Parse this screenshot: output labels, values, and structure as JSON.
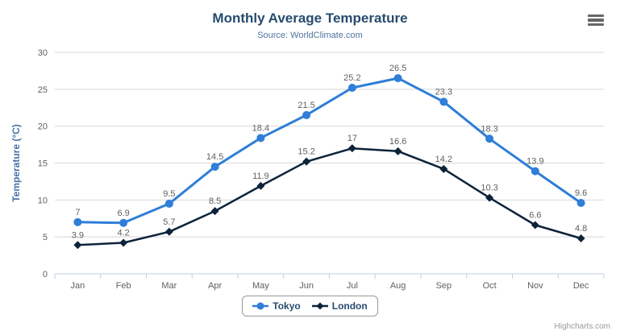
{
  "chart_data": {
    "type": "line",
    "title": "Monthly Average Temperature",
    "subtitle": "Source: WorldClimate.com",
    "categories": [
      "Jan",
      "Feb",
      "Mar",
      "Apr",
      "May",
      "Jun",
      "Jul",
      "Aug",
      "Sep",
      "Oct",
      "Nov",
      "Dec"
    ],
    "series": [
      {
        "name": "Tokyo",
        "marker": "circle",
        "color": "#2f7ed8",
        "values": [
          7,
          6.9,
          9.5,
          14.5,
          18.4,
          21.5,
          25.2,
          26.5,
          23.3,
          18.3,
          13.9,
          9.6
        ]
      },
      {
        "name": "London",
        "marker": "diamond",
        "color": "#0d233a",
        "values": [
          3.9,
          4.2,
          5.7,
          8.5,
          11.9,
          15.2,
          17,
          16.6,
          14.2,
          10.3,
          6.6,
          4.8
        ]
      }
    ],
    "xlabel": "",
    "ylabel": "Temperature (°C)",
    "ylim": [
      0,
      30
    ],
    "yticks": [
      0,
      5,
      10,
      15,
      20,
      25,
      30
    ],
    "grid": true,
    "data_labels": true,
    "legend_position": "bottom"
  },
  "toolbar": {
    "context_menu_icon": "hamburger-menu-icon"
  },
  "credits": {
    "label": "Highcharts.com"
  },
  "colors": {
    "title": "#274b6d",
    "subtitle": "#4d759e",
    "axis_labels": "#606060",
    "data_labels": "#606060",
    "yaxis_title": "#4572a7",
    "gridline": "#d8d8d8",
    "axis_line": "#c0d0e0",
    "legend_border": "#999999",
    "credits_text": "#999999",
    "menu_icon": "#666666"
  }
}
